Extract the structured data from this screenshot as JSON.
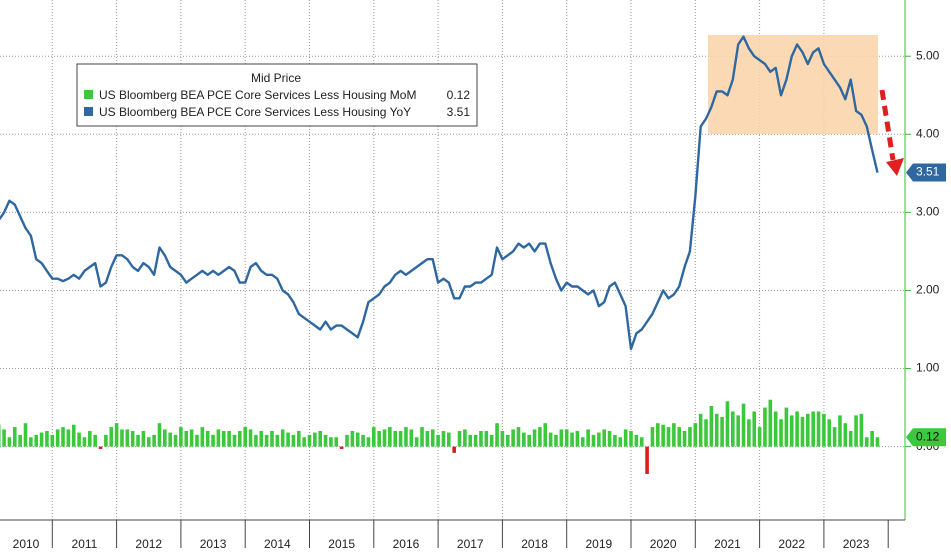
{
  "chart_data": {
    "type": "bar_line",
    "legend_title": "Mid Price",
    "years": [
      "2010",
      "2011",
      "2012",
      "2013",
      "2014",
      "2015",
      "2016",
      "2017",
      "2018",
      "2019",
      "2020",
      "2021",
      "2022",
      "2023"
    ],
    "ylim": [
      -0.94,
      5.72
    ],
    "yticks": [
      {
        "value": 0,
        "label": "0.00"
      },
      {
        "value": 1,
        "label": "1.00"
      },
      {
        "value": 2,
        "label": "2.00"
      },
      {
        "value": 3,
        "label": "3.00"
      },
      {
        "value": 4,
        "label": "4.00"
      },
      {
        "value": 5,
        "label": "5.00"
      }
    ],
    "grid": true,
    "series": [
      {
        "name": "US Bloomberg BEA PCE Core Services Less Housing MoM",
        "type": "bar",
        "color": "#3cc83c",
        "negative_color": "#d81e1e",
        "values": [
          0.28,
          0.22,
          0.12,
          0.25,
          0.15,
          0.3,
          0.12,
          0.15,
          0.18,
          0.2,
          0.15,
          0.22,
          0.25,
          0.22,
          0.28,
          0.18,
          0.12,
          0.2,
          0.15,
          -0.03,
          0.15,
          0.25,
          0.3,
          0.22,
          0.22,
          0.2,
          0.15,
          0.2,
          0.12,
          0.15,
          0.3,
          0.22,
          0.18,
          0.15,
          0.25,
          0.2,
          0.22,
          0.15,
          0.25,
          0.2,
          0.15,
          0.22,
          0.2,
          0.2,
          0.15,
          0.2,
          0.25,
          0.22,
          0.15,
          0.2,
          0.15,
          0.2,
          0.15,
          0.22,
          0.18,
          0.15,
          0.2,
          0.12,
          0.15,
          0.18,
          0.2,
          0.15,
          0.12,
          0.12,
          -0.03,
          0.15,
          0.2,
          0.18,
          0.15,
          0.12,
          0.25,
          0.2,
          0.22,
          0.25,
          0.2,
          0.2,
          0.25,
          0.22,
          0.12,
          0.25,
          0.2,
          0.22,
          0.15,
          0.2,
          0.18,
          -0.08,
          0.2,
          0.22,
          0.15,
          0.15,
          0.2,
          0.2,
          0.15,
          0.3,
          0.2,
          0.15,
          0.22,
          0.25,
          0.18,
          0.15,
          0.22,
          0.25,
          0.3,
          0.18,
          0.15,
          0.22,
          0.22,
          0.18,
          0.2,
          0.12,
          0.22,
          0.15,
          0.18,
          0.22,
          0.2,
          0.15,
          0.12,
          0.22,
          0.2,
          0.15,
          0.12,
          -0.35,
          0.25,
          0.3,
          0.28,
          0.25,
          0.3,
          0.25,
          0.2,
          0.25,
          0.3,
          0.42,
          0.35,
          0.52,
          0.42,
          0.38,
          0.58,
          0.45,
          0.4,
          0.55,
          0.35,
          0.45,
          0.25,
          0.5,
          0.6,
          0.45,
          0.35,
          0.5,
          0.4,
          0.45,
          0.38,
          0.42,
          0.45,
          0.45,
          0.42,
          0.35,
          0.25,
          0.4,
          0.3,
          0.2,
          0.4,
          0.42,
          0.12,
          0.2,
          0.12
        ]
      },
      {
        "name": "US Bloomberg BEA PCE Core Services Less Housing YoY",
        "type": "line",
        "color": "#2f67a0",
        "values": [
          2.9,
          3.0,
          3.15,
          3.1,
          2.95,
          2.8,
          2.7,
          2.4,
          2.35,
          2.25,
          2.15,
          2.15,
          2.12,
          2.15,
          2.2,
          2.15,
          2.25,
          2.3,
          2.35,
          2.05,
          2.1,
          2.3,
          2.45,
          2.45,
          2.4,
          2.3,
          2.25,
          2.35,
          2.3,
          2.2,
          2.55,
          2.45,
          2.3,
          2.25,
          2.2,
          2.1,
          2.15,
          2.2,
          2.25,
          2.2,
          2.25,
          2.2,
          2.25,
          2.3,
          2.25,
          2.1,
          2.1,
          2.3,
          2.35,
          2.25,
          2.2,
          2.2,
          2.15,
          2.0,
          1.95,
          1.85,
          1.7,
          1.65,
          1.6,
          1.55,
          1.5,
          1.6,
          1.5,
          1.55,
          1.55,
          1.5,
          1.45,
          1.4,
          1.6,
          1.85,
          1.9,
          1.95,
          2.05,
          2.1,
          2.2,
          2.25,
          2.2,
          2.25,
          2.3,
          2.35,
          2.4,
          2.4,
          2.1,
          2.15,
          2.1,
          1.9,
          1.9,
          2.05,
          2.05,
          2.1,
          2.1,
          2.15,
          2.2,
          2.55,
          2.4,
          2.45,
          2.5,
          2.6,
          2.55,
          2.6,
          2.5,
          2.6,
          2.6,
          2.35,
          2.15,
          2.0,
          2.1,
          2.05,
          2.05,
          2.0,
          1.95,
          2.0,
          1.8,
          1.85,
          2.05,
          2.1,
          1.95,
          1.8,
          1.25,
          1.45,
          1.5,
          1.6,
          1.7,
          1.85,
          2.0,
          1.9,
          1.95,
          2.05,
          2.3,
          2.5,
          3.2,
          4.1,
          4.2,
          4.35,
          4.55,
          4.55,
          4.5,
          4.7,
          5.15,
          5.25,
          5.1,
          5.0,
          4.95,
          4.9,
          4.8,
          4.85,
          4.5,
          4.7,
          5.0,
          5.15,
          5.05,
          4.9,
          5.05,
          5.1,
          4.9,
          4.8,
          4.7,
          4.6,
          4.45,
          4.7,
          4.3,
          4.25,
          4.1,
          3.8,
          3.51
        ]
      }
    ]
  }
}
